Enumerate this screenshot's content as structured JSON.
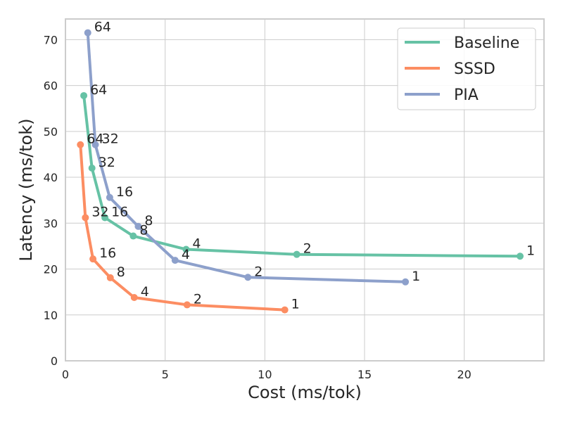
{
  "chart_data": {
    "type": "line",
    "title": "",
    "xlabel": "Cost (ms/tok)",
    "ylabel": "Latency (ms/tok)",
    "xlim": [
      0,
      24
    ],
    "ylim": [
      0,
      74.5
    ],
    "xticks": [
      0,
      5,
      10,
      15,
      20
    ],
    "yticks": [
      0,
      10,
      20,
      30,
      40,
      50,
      60,
      70
    ],
    "grid": true,
    "legend_position": "top-right",
    "series": [
      {
        "name": "Baseline",
        "color": "#66c2a5",
        "points": [
          {
            "x": 0.92,
            "y": 57.8,
            "label": "64"
          },
          {
            "x": 1.33,
            "y": 42.0,
            "label": "32"
          },
          {
            "x": 1.98,
            "y": 31.2,
            "label": "16"
          },
          {
            "x": 3.4,
            "y": 27.2,
            "label": "8"
          },
          {
            "x": 6.05,
            "y": 24.3,
            "label": "4"
          },
          {
            "x": 11.6,
            "y": 23.2,
            "label": "2"
          },
          {
            "x": 22.8,
            "y": 22.8,
            "label": "1"
          }
        ]
      },
      {
        "name": "SSSD",
        "color": "#fc8d62",
        "points": [
          {
            "x": 0.75,
            "y": 47.1,
            "label": "64"
          },
          {
            "x": 1.0,
            "y": 31.2,
            "label": "32"
          },
          {
            "x": 1.38,
            "y": 22.2,
            "label": "16"
          },
          {
            "x": 2.25,
            "y": 18.1,
            "label": "8"
          },
          {
            "x": 3.45,
            "y": 13.8,
            "label": "4"
          },
          {
            "x": 6.1,
            "y": 12.2,
            "label": "2"
          },
          {
            "x": 11.0,
            "y": 11.1,
            "label": "1"
          }
        ]
      },
      {
        "name": "PIA",
        "color": "#8da0cb",
        "points": [
          {
            "x": 1.12,
            "y": 71.5,
            "label": "64"
          },
          {
            "x": 1.5,
            "y": 47.1,
            "label": "32"
          },
          {
            "x": 2.22,
            "y": 35.6,
            "label": "16"
          },
          {
            "x": 3.65,
            "y": 29.3,
            "label": "8"
          },
          {
            "x": 5.5,
            "y": 21.9,
            "label": "4"
          },
          {
            "x": 9.15,
            "y": 18.2,
            "label": "2"
          },
          {
            "x": 17.05,
            "y": 17.2,
            "label": "1"
          }
        ]
      }
    ]
  }
}
